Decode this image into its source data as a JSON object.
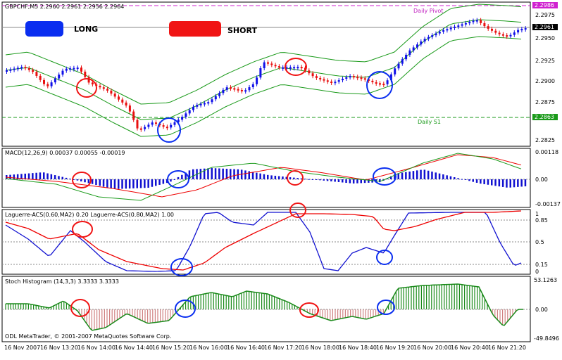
{
  "main": {
    "title": "GBPCHF,M5 2.2960 2.2961 2.2956 2.2964",
    "long_label": "LONG",
    "short_label": "SHORT",
    "daily_pivot": "Daily Pivot",
    "daily_s1": "Daily S1",
    "price_ticks": [
      "2.2975",
      "2.2950",
      "2.2925",
      "2.2900",
      "2.2875",
      "2.2850",
      "2.2825"
    ],
    "pivot_price": "2.2986",
    "current_price": "2.2961",
    "s1_price": "2.2863"
  },
  "macd": {
    "title": "MACD(12,26,9) 0.00037 0.00055 -0.00019",
    "ticks": [
      "0.00118",
      "0.00",
      "-0.00137"
    ]
  },
  "laguerre": {
    "title": "Laguerre-ACS(0.60,MA2) 0.20 Laguerre-ACS(0.80,MA2) 1.00",
    "ticks": [
      "1",
      "0.85",
      "0.5",
      "0.15",
      "0"
    ]
  },
  "stoch": {
    "title": "Stoch Histogram (14,3,3) 3.3333 3.3333",
    "ticks": [
      "53.1263",
      "0.00",
      "-49.8496"
    ],
    "copyright": "ODL MetaTrader, © 2001-2007 MetaQuotes Software Corp."
  },
  "time_axis": [
    "16 Nov 2007",
    "16 Nov 13:20",
    "16 Nov 14:00",
    "16 Nov 14:40",
    "16 Nov 15:20",
    "16 Nov 16:00",
    "16 Nov 16:40",
    "16 Nov 17:20",
    "16 Nov 18:00",
    "16 Nov 18:40",
    "16 Nov 19:20",
    "16 Nov 20:00",
    "16 Nov 20:40",
    "16 Nov 21:20"
  ],
  "colors": {
    "long": "#0a2ef0",
    "short": "#f01414",
    "bull": "#1010e8",
    "bear": "#e81010",
    "band": "#1a9a1a"
  }
}
